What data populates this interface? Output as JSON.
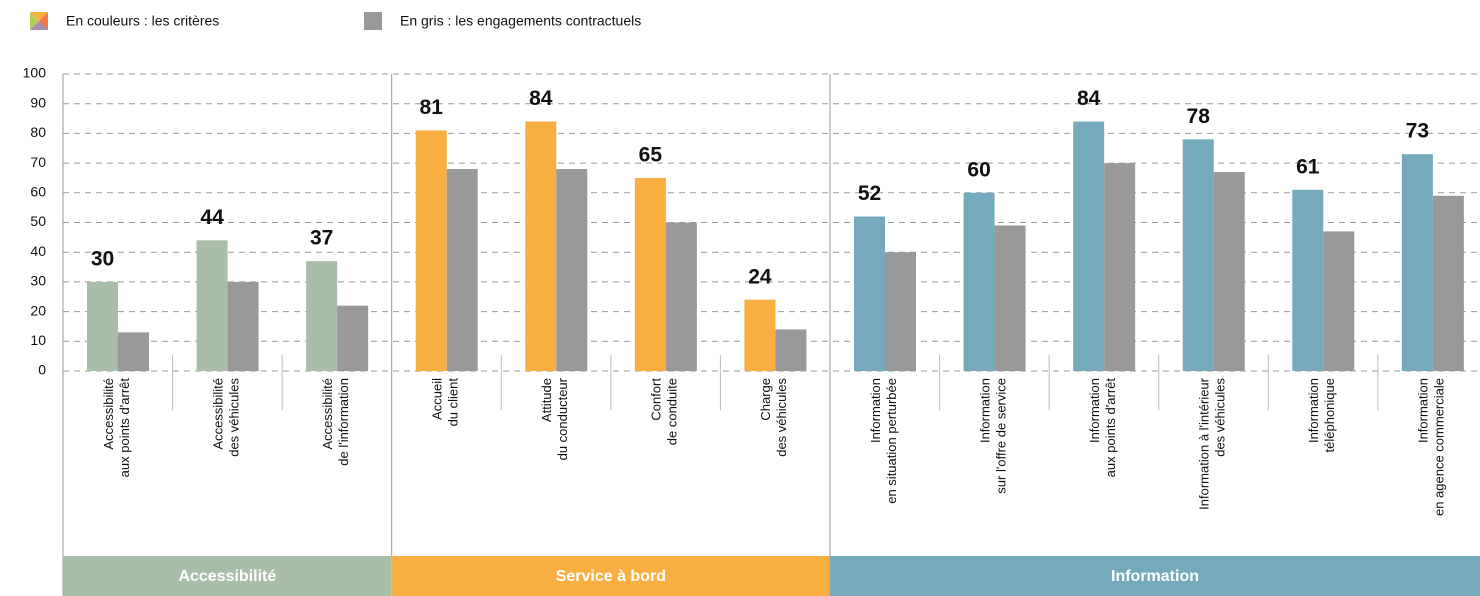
{
  "chart_data": {
    "type": "bar",
    "categories": [
      [
        "Accessibilité",
        "aux points d'arrêt"
      ],
      [
        "Accessibilité",
        "des véhicules"
      ],
      [
        "Accessibilité",
        "de l'information"
      ],
      [
        "Accueil",
        "du client"
      ],
      [
        "Attitude",
        "du conducteur"
      ],
      [
        "Confort",
        "de conduite"
      ],
      [
        "Charge",
        "des véhicules"
      ],
      [
        "Information",
        "en situation perturbée"
      ],
      [
        "Information",
        "sur l'offre de service"
      ],
      [
        "Information",
        "aux points d'arrêt"
      ],
      [
        "Information à l'intérieur",
        "des véhicules"
      ],
      [
        "Information",
        "téléphonique"
      ],
      [
        "Information",
        "en agence commerciale"
      ]
    ],
    "series": [
      {
        "name": "En couleurs : les critères",
        "colors": [
          "#a9bea9",
          "#a9bea9",
          "#a9bea9",
          "#f9ae41",
          "#f9ae41",
          "#f9ae41",
          "#f9ae41",
          "#75a9bc",
          "#75a9bc",
          "#75a9bc",
          "#75a9bc",
          "#75a9bc",
          "#75a9bc"
        ],
        "values": [
          30,
          44,
          37,
          81,
          84,
          65,
          24,
          52,
          60,
          84,
          78,
          61,
          73
        ]
      },
      {
        "name": "En gris : les engagements contractuels",
        "color": "#999999",
        "values": [
          13,
          30,
          22,
          68,
          68,
          50,
          14,
          40,
          49,
          70,
          67,
          47,
          59
        ]
      }
    ],
    "groups": [
      {
        "name": "Accessibilité",
        "color": "#a9bea9",
        "count": 3
      },
      {
        "name": "Service à bord",
        "color": "#f9ae41",
        "count": 4
      },
      {
        "name": "Information",
        "color": "#75a9bc",
        "count": 6
      }
    ],
    "ylim": [
      0,
      100
    ],
    "yticks": [
      0,
      10,
      20,
      30,
      40,
      50,
      60,
      70,
      80,
      90,
      100
    ],
    "grid": true
  }
}
